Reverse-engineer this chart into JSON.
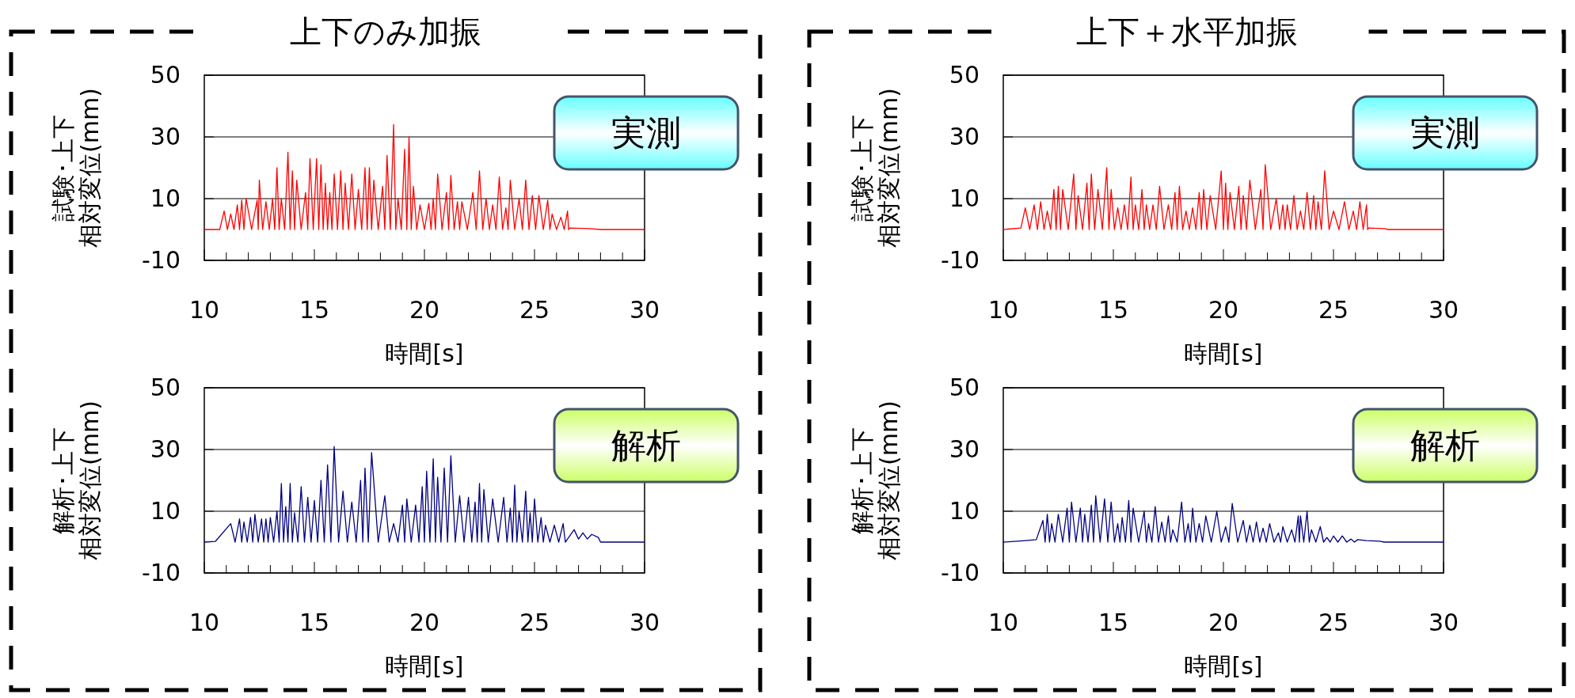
{
  "chart_data": [
    {
      "type": "line",
      "title": "上下のみ加振",
      "xlabel": "時間[s]",
      "ylabel": "試験･上下相対変位(mm)",
      "annotations": [
        "実測"
      ],
      "xlim": [
        10,
        30
      ],
      "ylim": [
        -10,
        50
      ],
      "yticks": [
        -10,
        10,
        30,
        50
      ],
      "xticks": [
        10,
        {
          "value": 11,
          "label": null
        },
        {
          "value": 12,
          "label": null
        },
        {
          "value": 13,
          "label": null
        },
        {
          "value": 14,
          "label": null
        },
        15,
        {
          "value": 16,
          "label": null
        },
        {
          "value": 17,
          "label": null
        },
        {
          "value": 18,
          "label": null
        },
        {
          "value": 19,
          "label": null
        },
        20,
        {
          "value": 21,
          "label": null
        },
        {
          "value": 22,
          "label": null
        },
        {
          "value": 23,
          "label": null
        },
        {
          "value": 24,
          "label": null
        },
        25,
        {
          "value": 26,
          "label": null
        },
        {
          "value": 27,
          "label": null
        },
        {
          "value": 28,
          "label": null
        },
        {
          "value": 29,
          "label": null
        },
        30
      ],
      "grid": "y",
      "line_style": "solid",
      "marker": "none",
      "series": [
        {
          "color": "#ff0000",
          "x": [
            10,
            10.7,
            10.9,
            11.05,
            11.2,
            11.35,
            11.5,
            11.6,
            11.7,
            11.8,
            11.9,
            12.15,
            12.4,
            12.45,
            12.5,
            12.65,
            12.8,
            12.95,
            13.1,
            13.2,
            13.3,
            13.4,
            13.5,
            13.65,
            13.8,
            13.9,
            14.0,
            14.1,
            14.2,
            14.4,
            14.6,
            14.7,
            14.8,
            14.95,
            15.1,
            15.2,
            15.3,
            15.4,
            15.5,
            15.6,
            15.7,
            15.8,
            15.9,
            16.05,
            16.2,
            16.3,
            16.4,
            16.55,
            16.7,
            16.85,
            17.0,
            17.15,
            17.3,
            17.4,
            17.5,
            17.6,
            17.7,
            17.9,
            18.1,
            18.2,
            18.3,
            18.45,
            18.6,
            18.7,
            18.8,
            18.95,
            19.1,
            19.2,
            19.3,
            19.4,
            19.5,
            19.65,
            19.8,
            20.0,
            20.2,
            20.3,
            20.4,
            20.5,
            20.6,
            20.8,
            21.0,
            21.1,
            21.2,
            21.35,
            21.5,
            21.6,
            21.7,
            21.95,
            22.2,
            22.35,
            22.5,
            22.65,
            22.8,
            22.95,
            23.1,
            23.25,
            23.4,
            23.55,
            23.7,
            23.8,
            23.9,
            24.1,
            24.3,
            24.45,
            24.6,
            24.75,
            24.9,
            25.05,
            25.2,
            25.4,
            25.6,
            25.7,
            25.8,
            26.0,
            26.2,
            26.35,
            26.5,
            26.55,
            26.6,
            27.5,
            28,
            30
          ],
          "values": [
            0,
            0,
            6,
            0,
            5,
            0,
            8,
            0,
            9.5,
            0,
            10,
            0,
            9.5,
            0,
            16,
            0,
            9,
            0,
            10,
            0,
            20,
            0,
            10,
            0,
            25,
            0,
            19,
            0,
            16,
            0,
            12,
            0,
            23,
            0,
            23,
            0,
            21,
            0,
            15,
            0,
            12,
            0,
            18,
            0,
            19,
            0,
            15,
            0,
            18,
            0,
            13,
            0,
            20,
            0,
            20,
            0,
            16,
            0,
            14,
            0,
            24,
            0,
            34,
            0,
            10,
            0,
            26,
            0,
            30,
            0,
            14,
            0,
            8,
            0,
            8.5,
            0,
            10,
            0,
            18,
            0,
            12,
            0,
            17.5,
            0,
            9,
            0,
            9,
            0,
            12,
            0,
            19,
            0,
            10,
            0,
            8,
            0,
            17,
            0,
            7,
            0,
            16,
            0,
            10,
            0,
            16,
            0,
            11,
            0,
            11,
            0,
            9.5,
            0,
            5,
            0,
            4,
            0,
            6,
            0,
            0.5,
            0.3,
            0,
            0
          ]
        }
      ]
    },
    {
      "type": "line",
      "title": "上下＋水平加振",
      "xlabel": "時間[s]",
      "ylabel": "試験･上下相対変位(mm)",
      "annotations": [
        "実測"
      ],
      "xlim": [
        10,
        30
      ],
      "ylim": [
        -10,
        50
      ],
      "yticks": [
        -10,
        10,
        30,
        50
      ],
      "xticks": [
        10,
        {
          "value": 11,
          "label": null
        },
        {
          "value": 12,
          "label": null
        },
        {
          "value": 13,
          "label": null
        },
        {
          "value": 14,
          "label": null
        },
        15,
        {
          "value": 16,
          "label": null
        },
        {
          "value": 17,
          "label": null
        },
        {
          "value": 18,
          "label": null
        },
        {
          "value": 19,
          "label": null
        },
        20,
        {
          "value": 21,
          "label": null
        },
        {
          "value": 22,
          "label": null
        },
        {
          "value": 23,
          "label": null
        },
        {
          "value": 24,
          "label": null
        },
        25,
        {
          "value": 26,
          "label": null
        },
        {
          "value": 27,
          "label": null
        },
        {
          "value": 28,
          "label": null
        },
        {
          "value": 29,
          "label": null
        },
        30
      ],
      "grid": "y",
      "line_style": "solid",
      "marker": "none",
      "series": [
        {
          "color": "#ff0000",
          "x": [
            10,
            10.8,
            11.0,
            11.2,
            11.4,
            11.55,
            11.7,
            11.85,
            12.0,
            12.15,
            12.3,
            12.4,
            12.5,
            12.6,
            12.7,
            12.95,
            13.2,
            13.3,
            13.4,
            13.6,
            13.8,
            13.9,
            14.0,
            14.15,
            14.3,
            14.5,
            14.7,
            14.8,
            14.9,
            15.05,
            15.2,
            15.35,
            15.5,
            15.65,
            15.8,
            15.9,
            16.0,
            16.15,
            16.3,
            16.4,
            16.5,
            16.65,
            16.8,
            16.95,
            17.1,
            17.3,
            17.5,
            17.65,
            17.8,
            17.9,
            18.0,
            18.15,
            18.3,
            18.45,
            18.6,
            18.75,
            18.9,
            19.0,
            19.1,
            19.25,
            19.4,
            19.65,
            19.9,
            20.0,
            20.1,
            20.2,
            20.3,
            20.5,
            20.7,
            20.8,
            20.9,
            21.05,
            21.2,
            21.45,
            21.7,
            21.8,
            21.9,
            22.15,
            22.4,
            22.55,
            22.7,
            22.8,
            22.9,
            23.05,
            23.2,
            23.35,
            23.5,
            23.65,
            23.8,
            23.95,
            24.1,
            24.2,
            24.3,
            24.45,
            24.6,
            24.8,
            25.0,
            25.25,
            25.5,
            25.7,
            25.9,
            26.05,
            26.2,
            26.35,
            26.5,
            26.55,
            26.6,
            27.3,
            27.5,
            30
          ],
          "values": [
            0,
            0.5,
            7,
            0,
            8,
            0,
            9,
            0,
            6,
            0,
            13,
            0,
            14,
            0,
            13,
            0,
            18,
            0,
            11,
            0,
            15,
            0,
            18,
            0,
            13,
            0,
            20,
            0,
            13,
            0,
            7,
            0,
            8,
            0,
            17,
            0,
            8,
            0,
            13,
            0,
            8,
            0,
            8,
            0,
            14,
            0,
            8,
            0,
            12,
            0,
            14,
            0,
            6,
            0,
            7,
            0,
            12,
            0,
            13,
            0,
            11,
            0,
            19,
            0,
            15,
            0,
            12,
            0,
            14,
            0,
            11,
            0,
            16,
            0,
            13,
            0,
            21,
            0,
            10,
            0,
            8,
            0,
            8,
            0,
            11,
            0,
            6,
            0,
            12,
            0,
            11,
            0,
            9,
            0,
            19,
            0,
            6,
            0,
            9,
            0,
            6,
            0,
            9,
            0,
            8,
            0,
            0.5,
            0.3,
            0,
            0
          ]
        }
      ]
    },
    {
      "type": "line",
      "xlabel": "時間[s]",
      "ylabel": "解析･上下相対変位(mm)",
      "annotations": [
        "解析"
      ],
      "xlim": [
        10,
        30
      ],
      "ylim": [
        -10,
        50
      ],
      "yticks": [
        -10,
        10,
        30,
        50
      ],
      "xticks": [
        10,
        {
          "value": 11,
          "label": null
        },
        {
          "value": 12,
          "label": null
        },
        {
          "value": 13,
          "label": null
        },
        {
          "value": 14,
          "label": null
        },
        15,
        {
          "value": 16,
          "label": null
        },
        {
          "value": 17,
          "label": null
        },
        {
          "value": 18,
          "label": null
        },
        {
          "value": 19,
          "label": null
        },
        20,
        {
          "value": 21,
          "label": null
        },
        {
          "value": 22,
          "label": null
        },
        {
          "value": 23,
          "label": null
        },
        {
          "value": 24,
          "label": null
        },
        25,
        {
          "value": 26,
          "label": null
        },
        {
          "value": 27,
          "label": null
        },
        {
          "value": 28,
          "label": null
        },
        {
          "value": 29,
          "label": null
        },
        30
      ],
      "grid": "y",
      "line_style": "solid",
      "marker": "none",
      "series": [
        {
          "color": "#000080",
          "x": [
            10,
            10.5,
            11.2,
            11.4,
            11.6,
            11.7,
            11.8,
            11.95,
            12.1,
            12.2,
            12.3,
            12.45,
            12.6,
            12.7,
            12.8,
            12.9,
            13.0,
            13.15,
            13.3,
            13.4,
            13.5,
            13.6,
            13.7,
            13.8,
            13.9,
            14.0,
            14.1,
            14.25,
            14.4,
            14.55,
            14.7,
            14.85,
            15.0,
            15.15,
            15.3,
            15.45,
            15.6,
            15.75,
            15.9,
            16.1,
            16.3,
            16.5,
            16.7,
            16.9,
            17.1,
            17.2,
            17.3,
            17.45,
            17.6,
            17.9,
            18.2,
            18.4,
            18.6,
            18.8,
            19.0,
            19.1,
            19.2,
            19.4,
            19.6,
            19.75,
            19.9,
            20.0,
            20.1,
            20.25,
            20.4,
            20.5,
            20.6,
            20.75,
            20.9,
            21.05,
            21.2,
            21.4,
            21.6,
            21.8,
            22.0,
            22.15,
            22.3,
            22.4,
            22.5,
            22.6,
            22.7,
            22.9,
            23.1,
            23.35,
            23.6,
            23.75,
            23.9,
            24.0,
            24.1,
            24.2,
            24.3,
            24.45,
            24.6,
            24.7,
            24.8,
            24.9,
            25.0,
            25.15,
            25.3,
            25.4,
            25.5,
            25.7,
            25.9,
            26.1,
            26.3,
            26.4,
            26.5,
            26.8,
            27.0,
            27.2,
            27.4,
            27.6,
            27.9,
            28.0,
            30
          ],
          "values": [
            0,
            0.2,
            6,
            0,
            7.5,
            0,
            6.5,
            0,
            8,
            0,
            9,
            0,
            7.5,
            0,
            7.5,
            0,
            8,
            0,
            10,
            0,
            19,
            0,
            11.5,
            0,
            19,
            0,
            9.5,
            0,
            18,
            0,
            14.5,
            0,
            13.5,
            0,
            20,
            0,
            25,
            0,
            31,
            0,
            16.5,
            0,
            13,
            0,
            20,
            0,
            24,
            0,
            29,
            0,
            15,
            0,
            6,
            0,
            12,
            0,
            14,
            0,
            12,
            0,
            18,
            0,
            23,
            0,
            27,
            0,
            21,
            0,
            24,
            0,
            28,
            0,
            15,
            0,
            14.5,
            0,
            13,
            0,
            19,
            0,
            17,
            0,
            14,
            0,
            14.5,
            0,
            11,
            0,
            18.5,
            0,
            10,
            0,
            16.5,
            0,
            9.5,
            0,
            14,
            0,
            8,
            0,
            5.5,
            0,
            5.5,
            0,
            6,
            0,
            1,
            4,
            1,
            3,
            1,
            2.5,
            1.5,
            0,
            0
          ]
        }
      ]
    },
    {
      "type": "line",
      "xlabel": "時間[s]",
      "ylabel": "解析･上下相対変位(mm)",
      "annotations": [
        "解析"
      ],
      "xlim": [
        10,
        30
      ],
      "ylim": [
        -10,
        50
      ],
      "yticks": [
        -10,
        10,
        30,
        50
      ],
      "xticks": [
        10,
        {
          "value": 11,
          "label": null
        },
        {
          "value": 12,
          "label": null
        },
        {
          "value": 13,
          "label": null
        },
        {
          "value": 14,
          "label": null
        },
        15,
        {
          "value": 16,
          "label": null
        },
        {
          "value": 17,
          "label": null
        },
        {
          "value": 18,
          "label": null
        },
        {
          "value": 19,
          "label": null
        },
        20,
        {
          "value": 21,
          "label": null
        },
        {
          "value": 22,
          "label": null
        },
        {
          "value": 23,
          "label": null
        },
        {
          "value": 24,
          "label": null
        },
        25,
        {
          "value": 26,
          "label": null
        },
        {
          "value": 27,
          "label": null
        },
        {
          "value": 28,
          "label": null
        },
        {
          "value": 29,
          "label": null
        },
        30
      ],
      "grid": "y",
      "line_style": "solid",
      "marker": "none",
      "series": [
        {
          "color": "#000080",
          "x": [
            10,
            11.0,
            11.5,
            11.8,
            11.9,
            12.0,
            12.1,
            12.2,
            12.35,
            12.5,
            12.7,
            12.9,
            13.0,
            13.1,
            13.3,
            13.5,
            13.6,
            13.7,
            13.85,
            14.0,
            14.1,
            14.2,
            14.4,
            14.6,
            14.75,
            14.9,
            15.05,
            15.2,
            15.3,
            15.4,
            15.55,
            15.7,
            15.8,
            15.9,
            16.15,
            16.4,
            16.5,
            16.6,
            16.75,
            16.9,
            17.05,
            17.2,
            17.35,
            17.5,
            17.6,
            17.7,
            17.9,
            18.1,
            18.25,
            18.4,
            18.5,
            18.6,
            18.75,
            18.9,
            19.05,
            19.2,
            19.45,
            19.7,
            19.9,
            20.1,
            20.25,
            20.4,
            20.65,
            20.9,
            21.05,
            21.2,
            21.35,
            21.5,
            21.65,
            21.8,
            21.95,
            22.1,
            22.3,
            22.5,
            22.6,
            22.7,
            22.9,
            23.1,
            23.25,
            23.4,
            23.45,
            23.5,
            23.65,
            23.8,
            23.9,
            24.0,
            24.2,
            24.4,
            24.55,
            24.7,
            24.85,
            25.0,
            25.2,
            25.4,
            25.6,
            25.8,
            25.95,
            26.1,
            26.5,
            27.1,
            27.3,
            30
          ],
          "values": [
            0,
            0.5,
            0.8,
            7,
            0,
            9,
            0,
            6,
            0,
            9,
            0,
            11,
            0,
            13,
            0,
            11,
            0,
            9,
            0,
            12,
            0,
            15,
            0,
            14,
            0,
            13,
            0,
            6,
            0,
            8,
            0,
            13.5,
            0,
            11,
            0,
            10,
            0,
            6,
            0,
            11.5,
            0,
            6.5,
            0,
            8.5,
            0,
            4,
            0,
            13,
            0,
            6,
            0,
            11,
            0,
            6,
            0,
            8.5,
            0,
            10,
            0,
            5,
            0,
            12.5,
            0,
            7,
            0,
            5.5,
            0,
            6.5,
            0,
            4.5,
            0,
            6,
            0,
            3,
            0,
            5,
            0,
            4,
            0,
            8.5,
            0,
            8.5,
            0,
            10,
            0,
            4,
            0,
            5,
            0,
            1.5,
            0,
            2,
            0,
            2,
            0,
            1,
            0,
            0.8,
            0.5,
            0.3,
            0,
            0
          ]
        }
      ]
    }
  ]
}
